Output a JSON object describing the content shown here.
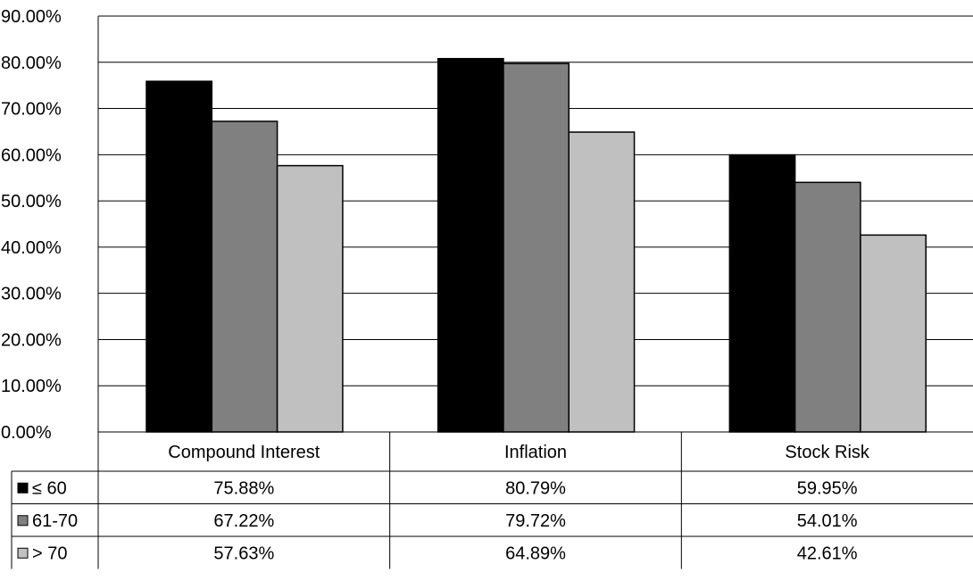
{
  "chart_data": {
    "type": "bar",
    "title": "",
    "xlabel": "",
    "ylabel": "",
    "ylim": [
      0,
      90
    ],
    "yticks": [
      "0.00%",
      "10.00%",
      "20.00%",
      "30.00%",
      "40.00%",
      "50.00%",
      "60.00%",
      "70.00%",
      "80.00%",
      "90.00%"
    ],
    "grid": true,
    "legend": "data-table",
    "categories": [
      "Compound Interest",
      "Inflation",
      "Stock Risk"
    ],
    "series": [
      {
        "name": "≤ 60",
        "values": [
          75.88,
          80.79,
          59.95
        ],
        "labels": [
          "75.88%",
          "80.79%",
          "59.95%"
        ],
        "color": "#000000"
      },
      {
        "name": "61-70",
        "values": [
          67.22,
          79.72,
          54.01
        ],
        "labels": [
          "67.22%",
          "79.72%",
          "54.01%"
        ],
        "color": "#808080"
      },
      {
        "name": "> 70",
        "values": [
          57.63,
          64.89,
          42.61
        ],
        "labels": [
          "57.63%",
          "64.89%",
          "42.61%"
        ],
        "color": "#c0c0c0"
      }
    ]
  }
}
